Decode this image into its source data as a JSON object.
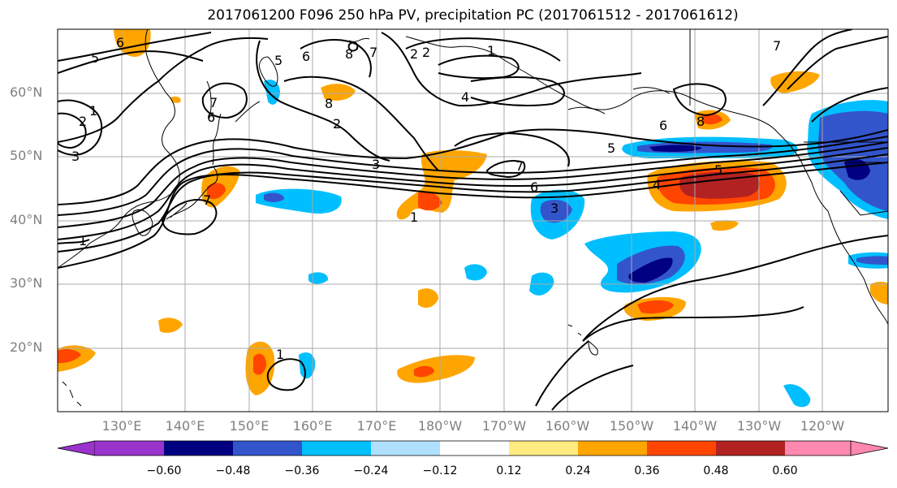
{
  "title": "2017061200 F096 250 hPa PV, precipitation PC (2017061512 - 2017061612)",
  "lat_labels": [
    "60°N",
    "50°N",
    "40°N",
    "30°N",
    "20°N"
  ],
  "lon_labels": [
    "130°E",
    "140°E",
    "150°E",
    "160°E",
    "170°E",
    "180°W",
    "170°W",
    "160°W",
    "150°W",
    "140°W",
    "130°W",
    "120°W"
  ],
  "colorbar": {
    "tick_labels": [
      "−0.60",
      "−0.48",
      "−0.36",
      "−0.24",
      "−0.12",
      "0.12",
      "0.24",
      "0.36",
      "0.48",
      "0.60"
    ],
    "colors": [
      "#9933cc",
      "#000080",
      "#3355cc",
      "#00bfff",
      "#b0e0ff",
      "#ffffff",
      "#ffeb80",
      "#ffa500",
      "#ff4500",
      "#b22222",
      "#ff88b0"
    ]
  },
  "contour_labels": [
    "1",
    "2",
    "3",
    "5",
    "6",
    "5",
    "6",
    "8",
    "7",
    "7",
    "2",
    "2",
    "1",
    "4",
    "8",
    "6",
    "2",
    "3",
    "7",
    "6",
    "5",
    "8",
    "7",
    "5",
    "4",
    "6",
    "3",
    "1",
    "1",
    "1",
    "7"
  ],
  "colors": {
    "gridline": "#a9a9a9",
    "coastline": "#000000",
    "contour": "#000000"
  }
}
